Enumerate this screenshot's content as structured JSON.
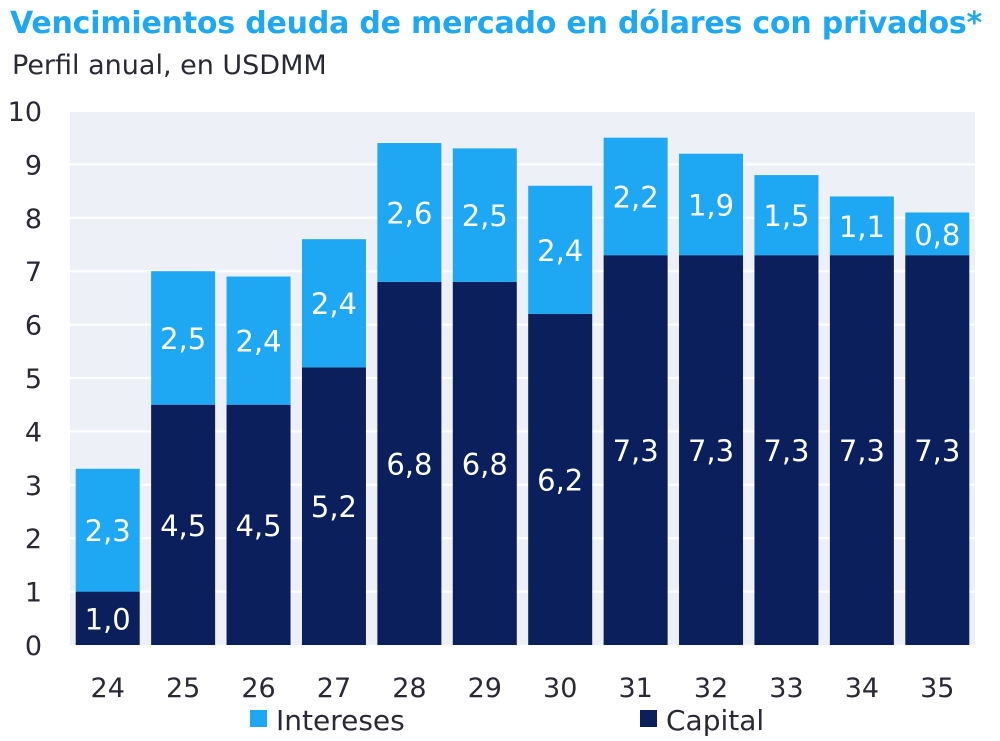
{
  "chart_data": {
    "type": "bar",
    "stacked": true,
    "title": "Vencimientos deuda de mercado en dólares con privados*",
    "subtitle": "Perfil anual, en USDMM",
    "xlabel": "",
    "ylabel": "",
    "ylim": [
      0,
      10
    ],
    "yticks": [
      "0",
      "1",
      "2",
      "3",
      "4",
      "5",
      "6",
      "7",
      "8",
      "9",
      "10"
    ],
    "grid": true,
    "categories": [
      "24",
      "25",
      "26",
      "27",
      "28",
      "29",
      "30",
      "31",
      "32",
      "33",
      "34",
      "35"
    ],
    "series": [
      {
        "name": "Capital",
        "color": "#0b1f5c",
        "values": [
          1.0,
          4.5,
          4.5,
          5.2,
          6.8,
          6.8,
          6.2,
          7.3,
          7.3,
          7.3,
          7.3,
          7.3
        ],
        "labels": [
          "1,0",
          "4,5",
          "4,5",
          "5,2",
          "6,8",
          "6,8",
          "6,2",
          "7,3",
          "7,3",
          "7,3",
          "7,3",
          "7,3"
        ]
      },
      {
        "name": "Intereses",
        "color": "#1ea7f2",
        "values": [
          2.3,
          2.5,
          2.4,
          2.4,
          2.6,
          2.5,
          2.4,
          2.2,
          1.9,
          1.5,
          1.1,
          0.8
        ],
        "labels": [
          "2,3",
          "2,5",
          "2,4",
          "2,4",
          "2,6",
          "2,5",
          "2,4",
          "2,2",
          "1,9",
          "1,5",
          "1,1",
          "0,8"
        ]
      }
    ],
    "legend": {
      "position": "bottom",
      "items": [
        {
          "label": "Intereses",
          "color": "#1ea7f2"
        },
        {
          "label": "Capital",
          "color": "#0b1f5c"
        }
      ]
    },
    "colors": {
      "grid": "#ffffff",
      "plot_background": "#eef0f7",
      "axis_text": "#2a2a35",
      "label_text": "#ffffff"
    }
  }
}
